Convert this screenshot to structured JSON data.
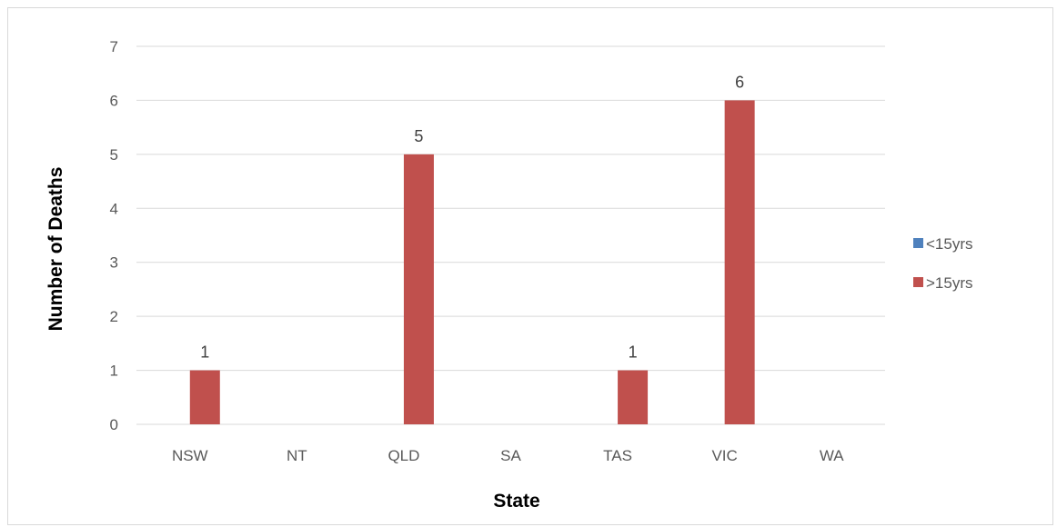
{
  "chart_data": {
    "type": "bar",
    "title": "",
    "xlabel": "State",
    "ylabel": "Number of Deaths",
    "categories": [
      "NSW",
      "NT",
      "QLD",
      "SA",
      "TAS",
      "VIC",
      "WA"
    ],
    "series": [
      {
        "name": "<15yrs",
        "color": "#4f81bd",
        "values": [
          0,
          0,
          0,
          0,
          0,
          0,
          0
        ]
      },
      {
        "name": ">15yrs",
        "color": "#c0504d",
        "values": [
          1,
          0,
          5,
          0,
          1,
          6,
          0
        ]
      }
    ],
    "data_labels": [
      {
        "category": "NSW",
        "value": "1"
      },
      {
        "category": "QLD",
        "value": "5"
      },
      {
        "category": "TAS",
        "value": "1"
      },
      {
        "category": "VIC",
        "value": "6"
      }
    ],
    "ylim": [
      0,
      7
    ],
    "yticks": [
      0,
      1,
      2,
      3,
      4,
      5,
      6,
      7
    ],
    "grid": true,
    "legend_position": "right"
  }
}
